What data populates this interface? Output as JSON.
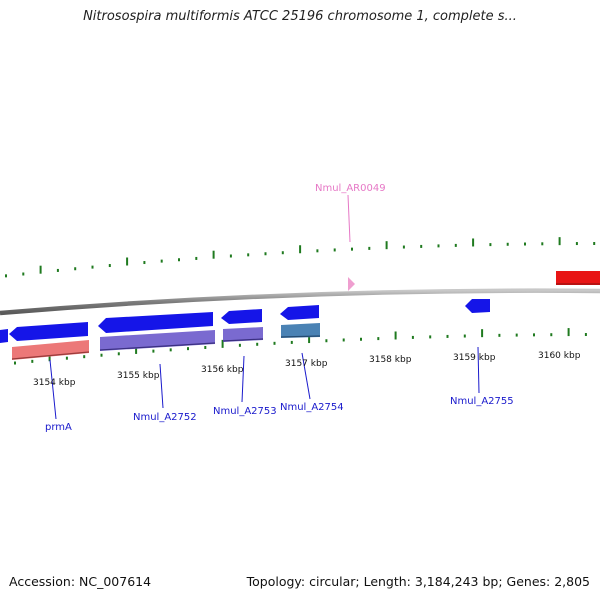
{
  "title": "Nitrosospira multiformis ATCC 25196 chromosome 1, complete s...",
  "footer": {
    "accession": "Accession: NC_007614",
    "topology": "Topology: circular; Length: 3,184,243 bp; Genes: 2,805"
  },
  "colors": {
    "backbone": "#8c8c8c",
    "gene_blue": "#1515e8",
    "gene_purple": "#7a6ad0",
    "gene_steel": "#4a82b4",
    "gene_salmon": "#ec7878",
    "gene_red": "#e81515",
    "rna_pink": "#ef9fd0",
    "gc_green": "#1f7a1f",
    "label_blue": "#1a1acc",
    "label_pink": "#e678c6"
  },
  "axis_ticks": [
    "3154 kbp",
    "3155 kbp",
    "3156 kbp",
    "3157 kbp",
    "3158 kbp",
    "3159 kbp",
    "3160 kbp"
  ],
  "gene_labels": [
    "prmA",
    "Nmul_A2752",
    "Nmul_A2753",
    "Nmul_A2754",
    "Nmul_A2755",
    "Nmul_AR0049"
  ]
}
